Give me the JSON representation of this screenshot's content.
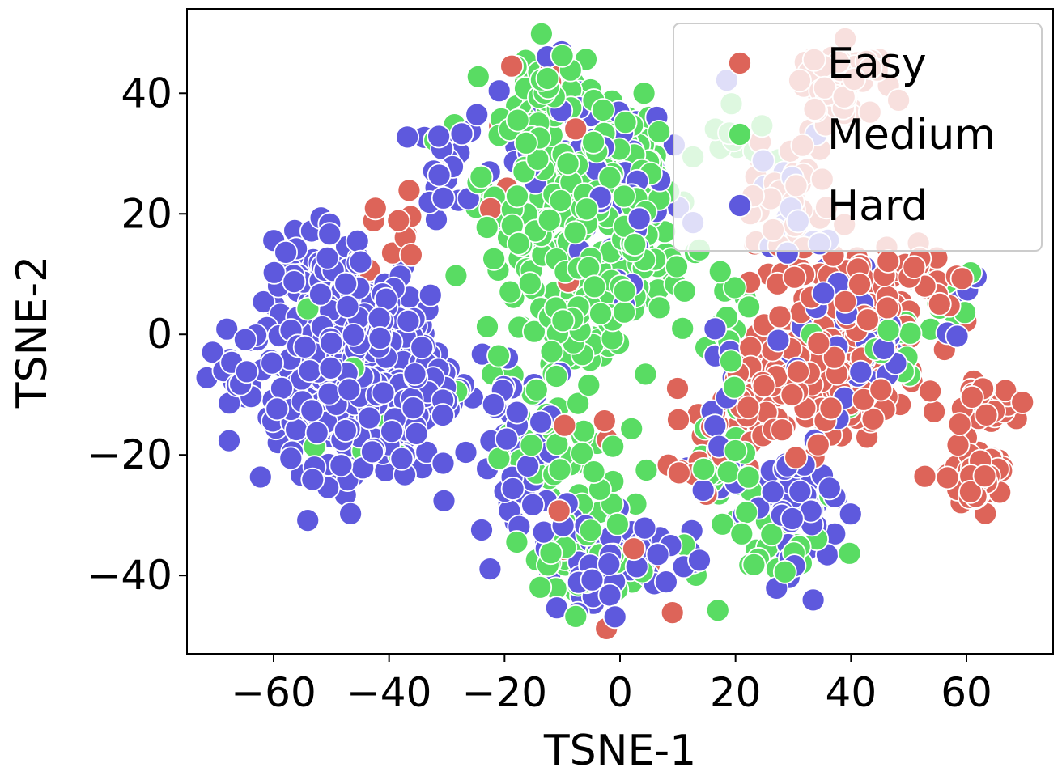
{
  "chart_data": {
    "type": "scatter",
    "title": "",
    "xlabel": "TSNE-1",
    "ylabel": "TSNE-2",
    "xlim": [
      -75,
      75
    ],
    "ylim": [
      -53,
      54
    ],
    "xticks": [
      -60,
      -40,
      -20,
      0,
      20,
      40,
      60
    ],
    "yticks": [
      -40,
      -20,
      0,
      20,
      40
    ],
    "xtick_labels": [
      "−60",
      "−40",
      "−20",
      "0",
      "20",
      "40",
      "60"
    ],
    "ytick_labels": [
      "−40",
      "−20",
      "0",
      "20",
      "40"
    ],
    "grid": false,
    "legend": {
      "placement": "top-right",
      "entries": [
        "Easy",
        "Medium",
        "Hard"
      ]
    },
    "series": [
      {
        "name": "Easy",
        "color": "#dd6459",
        "clusters": [
          {
            "cx": 38,
            "cy": 42,
            "sx": 4,
            "sy": 3,
            "n": 70
          },
          {
            "cx": 29,
            "cy": 22,
            "sx": 5,
            "sy": 6,
            "n": 40
          },
          {
            "cx": 37,
            "cy": -5,
            "sx": 8,
            "sy": 7,
            "n": 150
          },
          {
            "cx": 45,
            "cy": 6,
            "sx": 5,
            "sy": 4,
            "n": 60
          },
          {
            "cx": 63,
            "cy": -12,
            "sx": 2.5,
            "sy": 2.2,
            "n": 45
          },
          {
            "cx": 61,
            "cy": -24,
            "sx": 3,
            "sy": 2.2,
            "n": 55
          },
          {
            "cx": 57,
            "cy": 7,
            "sx": 2,
            "sy": 2,
            "n": 10
          },
          {
            "cx": 15,
            "cy": -17,
            "sx": 4,
            "sy": 5,
            "n": 20
          },
          {
            "cx": 23,
            "cy": -10,
            "sx": 3,
            "sy": 4,
            "n": 25
          },
          {
            "cx": -40,
            "cy": 15,
            "sx": 3,
            "sy": 5,
            "n": 12
          },
          {
            "cx": -3,
            "cy": -30,
            "sx": 6,
            "sy": 8,
            "n": 12
          },
          {
            "cx": -14,
            "cy": 25,
            "sx": 6,
            "sy": 12,
            "n": 10
          }
        ]
      },
      {
        "name": "Medium",
        "color": "#59dc63",
        "clusters": [
          {
            "cx": -12,
            "cy": 38,
            "sx": 4,
            "sy": 4,
            "n": 60
          },
          {
            "cx": -8,
            "cy": 22,
            "sx": 8,
            "sy": 8,
            "n": 180
          },
          {
            "cx": -10,
            "cy": 0,
            "sx": 6,
            "sy": 5,
            "n": 60
          },
          {
            "cx": 0,
            "cy": 30,
            "sx": 4,
            "sy": 6,
            "n": 40
          },
          {
            "cx": 3,
            "cy": 10,
            "sx": 4,
            "sy": 5,
            "n": 35
          },
          {
            "cx": -8,
            "cy": -20,
            "sx": 6,
            "sy": 5,
            "n": 40
          },
          {
            "cx": -4,
            "cy": -36,
            "sx": 6,
            "sy": 4,
            "n": 50
          },
          {
            "cx": 20,
            "cy": -25,
            "sx": 4,
            "sy": 10,
            "n": 30
          },
          {
            "cx": 18,
            "cy": 2,
            "sx": 4,
            "sy": 4,
            "n": 15
          },
          {
            "cx": 20,
            "cy": 33,
            "sx": 4,
            "sy": 2,
            "n": 12
          },
          {
            "cx": 45,
            "cy": 0,
            "sx": 5,
            "sy": 4,
            "n": 20
          },
          {
            "cx": 57,
            "cy": 6,
            "sx": 2,
            "sy": 2,
            "n": 8
          },
          {
            "cx": -47,
            "cy": -7,
            "sx": 8,
            "sy": 9,
            "n": 15
          },
          {
            "cx": 30,
            "cy": -35,
            "sx": 4,
            "sy": 3,
            "n": 15
          }
        ]
      },
      {
        "name": "Hard",
        "color": "#5e59dd",
        "clusters": [
          {
            "cx": -48,
            "cy": -7,
            "sx": 8,
            "sy": 9,
            "n": 320
          },
          {
            "cx": -35,
            "cy": -8,
            "sx": 4,
            "sy": 6,
            "n": 50
          },
          {
            "cx": -52,
            "cy": 10,
            "sx": 4,
            "sy": 4,
            "n": 35
          },
          {
            "cx": -67,
            "cy": -9,
            "sx": 1.5,
            "sy": 1.5,
            "n": 8
          },
          {
            "cx": -30,
            "cy": 28,
            "sx": 3,
            "sy": 4,
            "n": 25
          },
          {
            "cx": -8,
            "cy": 32,
            "sx": 7,
            "sy": 8,
            "n": 45
          },
          {
            "cx": 3,
            "cy": 20,
            "sx": 4,
            "sy": 8,
            "n": 25
          },
          {
            "cx": -18,
            "cy": -20,
            "sx": 4,
            "sy": 8,
            "n": 45
          },
          {
            "cx": -3,
            "cy": -36,
            "sx": 6,
            "sy": 4,
            "n": 55
          },
          {
            "cx": 10,
            "cy": -38,
            "sx": 3,
            "sy": 2,
            "n": 10
          },
          {
            "cx": 18,
            "cy": -22,
            "sx": 3,
            "sy": 4,
            "n": 20
          },
          {
            "cx": 30,
            "cy": -28,
            "sx": 4,
            "sy": 7,
            "n": 55
          },
          {
            "cx": 40,
            "cy": 2,
            "sx": 6,
            "sy": 6,
            "n": 45
          },
          {
            "cx": 20,
            "cy": -6,
            "sx": 3,
            "sy": 4,
            "n": 15
          },
          {
            "cx": 58,
            "cy": 6,
            "sx": 2,
            "sy": 3,
            "n": 8
          },
          {
            "cx": 30,
            "cy": 22,
            "sx": 4,
            "sy": 6,
            "n": 20
          }
        ]
      }
    ]
  }
}
